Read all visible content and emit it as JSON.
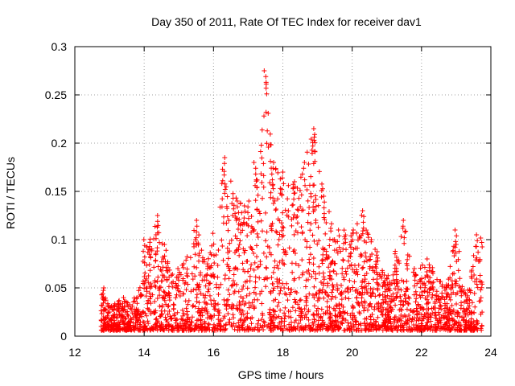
{
  "chart_data": {
    "type": "scatter",
    "title": "Day 350 of 2011, Rate Of TEC Index for receiver dav1",
    "xlabel": "GPS time / hours",
    "ylabel": "ROTI / TECUs",
    "xlim": [
      12,
      24
    ],
    "ylim": [
      0,
      0.3
    ],
    "x_ticks": [
      12,
      14,
      16,
      18,
      20,
      22,
      24
    ],
    "y_ticks": [
      0,
      0.05,
      0.1,
      0.15,
      0.2,
      0.25,
      0.3
    ],
    "x_tick_labels": [
      "12",
      "14",
      "16",
      "18",
      "20",
      "22",
      "24"
    ],
    "y_tick_labels": [
      "0",
      "0.05",
      "0.1",
      "0.15",
      "0.2",
      "0.25",
      "0.3"
    ],
    "grid": true,
    "marker": "plus",
    "marker_color": "#ff0000",
    "x_range_of_data": [
      12.75,
      23.75
    ],
    "envelope": [
      {
        "x": 12.8,
        "y": 0.05
      },
      {
        "x": 13.0,
        "y": 0.03
      },
      {
        "x": 13.4,
        "y": 0.04
      },
      {
        "x": 13.8,
        "y": 0.04
      },
      {
        "x": 14.0,
        "y": 0.1
      },
      {
        "x": 14.35,
        "y": 0.125
      },
      {
        "x": 14.6,
        "y": 0.095
      },
      {
        "x": 15.0,
        "y": 0.07
      },
      {
        "x": 15.5,
        "y": 0.12
      },
      {
        "x": 15.8,
        "y": 0.07
      },
      {
        "x": 16.3,
        "y": 0.185
      },
      {
        "x": 16.7,
        "y": 0.14
      },
      {
        "x": 17.0,
        "y": 0.14
      },
      {
        "x": 17.2,
        "y": 0.18
      },
      {
        "x": 17.5,
        "y": 0.275
      },
      {
        "x": 17.7,
        "y": 0.18
      },
      {
        "x": 18.0,
        "y": 0.17
      },
      {
        "x": 18.3,
        "y": 0.16
      },
      {
        "x": 18.6,
        "y": 0.18
      },
      {
        "x": 18.9,
        "y": 0.215
      },
      {
        "x": 19.2,
        "y": 0.145
      },
      {
        "x": 19.6,
        "y": 0.11
      },
      {
        "x": 20.0,
        "y": 0.11
      },
      {
        "x": 20.3,
        "y": 0.13
      },
      {
        "x": 20.7,
        "y": 0.09
      },
      {
        "x": 21.0,
        "y": 0.06
      },
      {
        "x": 21.5,
        "y": 0.12
      },
      {
        "x": 21.8,
        "y": 0.07
      },
      {
        "x": 22.2,
        "y": 0.08
      },
      {
        "x": 22.7,
        "y": 0.05
      },
      {
        "x": 23.0,
        "y": 0.11
      },
      {
        "x": 23.3,
        "y": 0.04
      },
      {
        "x": 23.6,
        "y": 0.105
      }
    ]
  }
}
